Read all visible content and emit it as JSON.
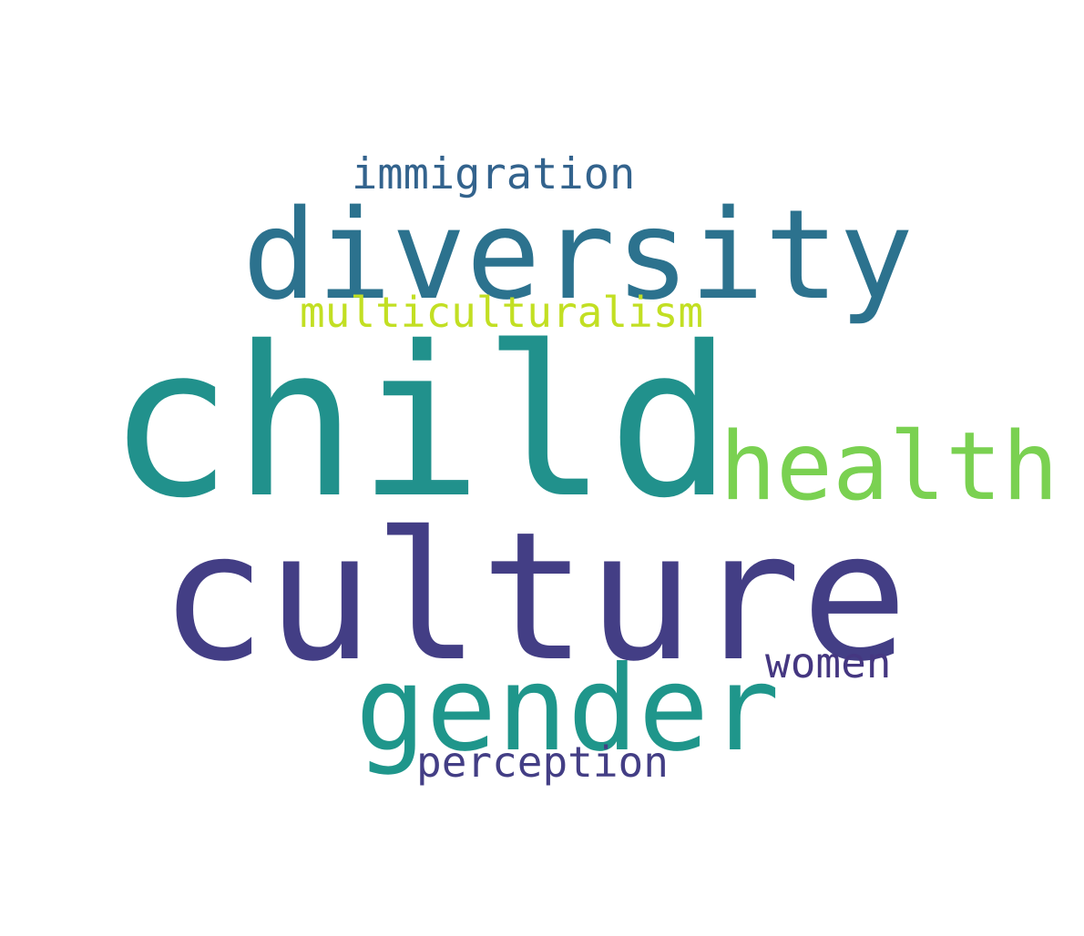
{
  "words": {
    "immigration": {
      "text": "immigration",
      "color": "#33638d"
    },
    "diversity": {
      "text": "diversity",
      "color": "#2c728e"
    },
    "multiculturalism": {
      "text": "multiculturalism",
      "color": "#c2df23"
    },
    "child": {
      "text": "child",
      "color": "#21918c"
    },
    "health": {
      "text": "health",
      "color": "#7ad151"
    },
    "culture": {
      "text": "culture",
      "color": "#433e85"
    },
    "women": {
      "text": "women",
      "color": "#453781"
    },
    "gender": {
      "text": "gender",
      "color": "#1f968b"
    },
    "perception": {
      "text": "perception",
      "color": "#433e85"
    }
  },
  "background_color": "#ffffff"
}
